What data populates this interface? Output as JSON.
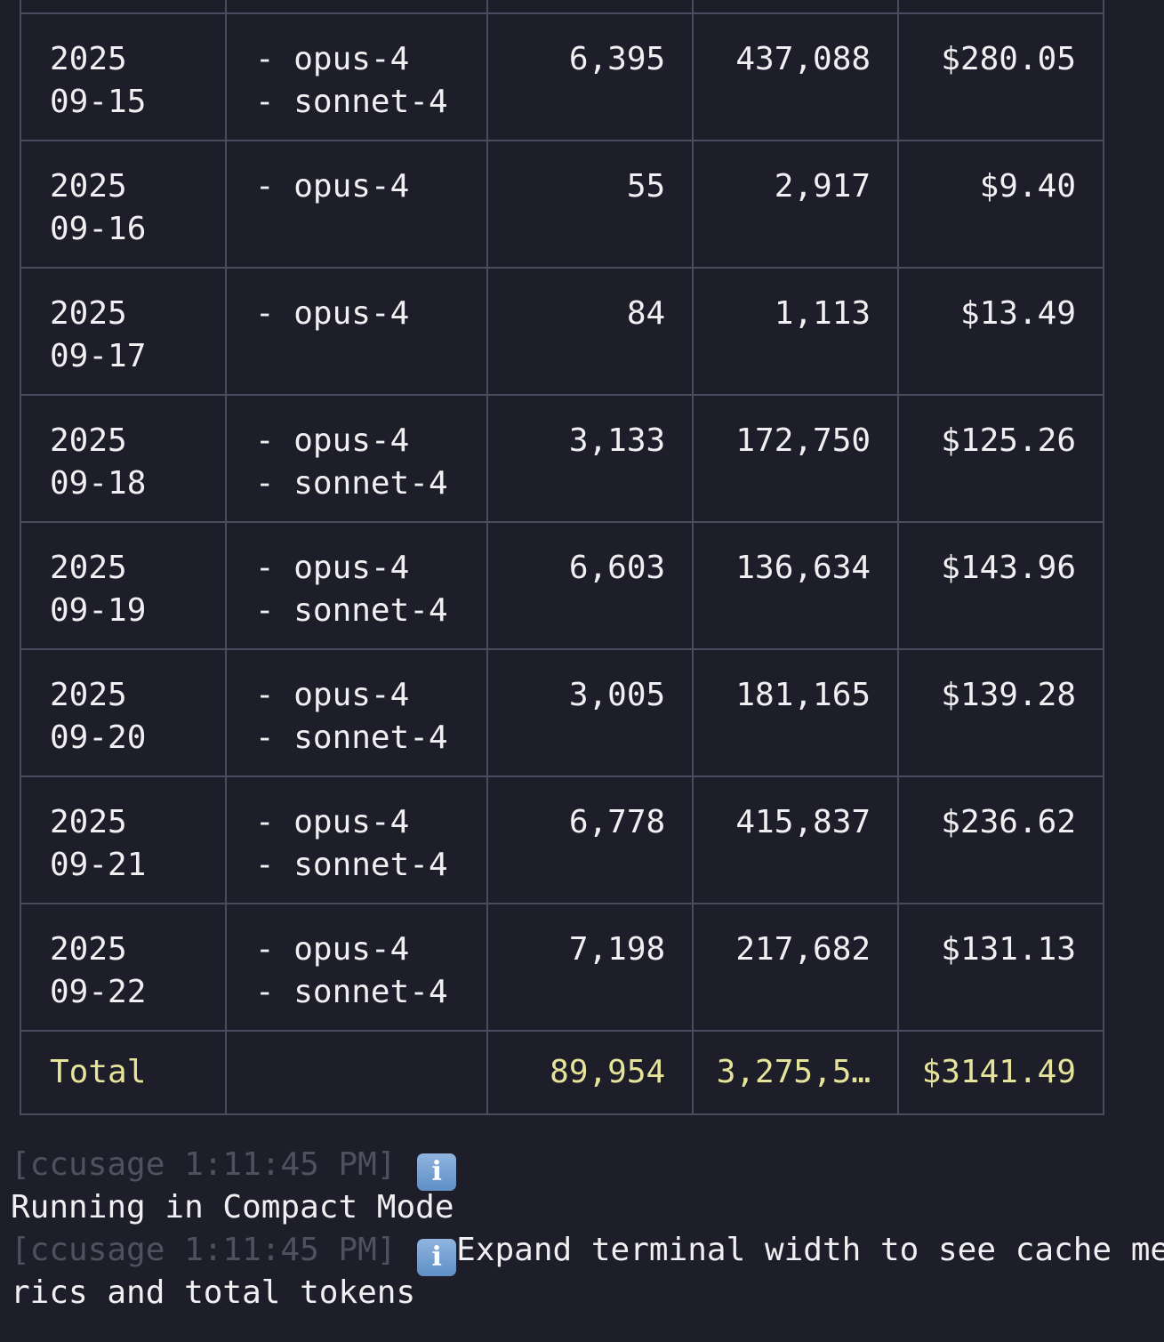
{
  "table": {
    "rows": [
      {
        "year": "2025",
        "day": "09-15",
        "models": [
          "- opus-4",
          "- sonnet-4"
        ],
        "input": "6,395",
        "output": "437,088",
        "cost": "$280.05"
      },
      {
        "year": "2025",
        "day": "09-16",
        "models": [
          "- opus-4"
        ],
        "input": "55",
        "output": "2,917",
        "cost": "$9.40"
      },
      {
        "year": "2025",
        "day": "09-17",
        "models": [
          "- opus-4"
        ],
        "input": "84",
        "output": "1,113",
        "cost": "$13.49"
      },
      {
        "year": "2025",
        "day": "09-18",
        "models": [
          "- opus-4",
          "- sonnet-4"
        ],
        "input": "3,133",
        "output": "172,750",
        "cost": "$125.26"
      },
      {
        "year": "2025",
        "day": "09-19",
        "models": [
          "- opus-4",
          "- sonnet-4"
        ],
        "input": "6,603",
        "output": "136,634",
        "cost": "$143.96"
      },
      {
        "year": "2025",
        "day": "09-20",
        "models": [
          "- opus-4",
          "- sonnet-4"
        ],
        "input": "3,005",
        "output": "181,165",
        "cost": "$139.28"
      },
      {
        "year": "2025",
        "day": "09-21",
        "models": [
          "- opus-4",
          "- sonnet-4"
        ],
        "input": "6,778",
        "output": "415,837",
        "cost": "$236.62"
      },
      {
        "year": "2025",
        "day": "09-22",
        "models": [
          "- opus-4",
          "- sonnet-4"
        ],
        "input": "7,198",
        "output": "217,682",
        "cost": "$131.13"
      }
    ],
    "total": {
      "label": "Total",
      "input": "89,954",
      "output": "3,275,5…",
      "cost": "$3141.49"
    }
  },
  "log": {
    "line1_prefix": "[ccusage 1:11:45 PM] ",
    "line1_icon": "info-icon",
    "line2": "Running in Compact Mode",
    "line3_prefix": "[ccusage 1:11:45 PM] ",
    "line3_icon": "info-icon",
    "line3_text": "Expand terminal width to see cache met",
    "line4": "rics and total tokens",
    "info_glyph": "i"
  },
  "colors": {
    "background": "#1e1e2a",
    "border": "#4a4b5e",
    "text": "#f0f0f2",
    "total_text": "#e6e39a",
    "dim_text": "#50515e"
  }
}
